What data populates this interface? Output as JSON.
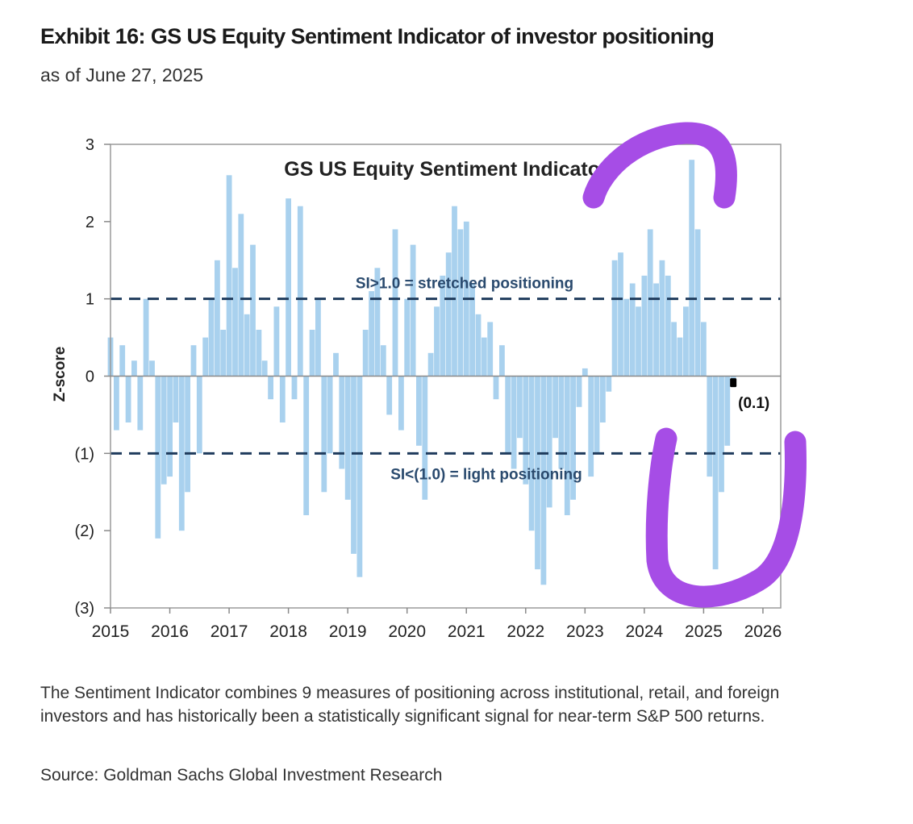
{
  "header": {
    "title": "Exhibit 16: GS US Equity Sentiment Indicator of investor positioning",
    "subtitle": "as of June 27, 2025"
  },
  "footer": {
    "note": "The Sentiment Indicator combines 9 measures of positioning across institutional, retail, and foreign investors and has historically been a statistically significant signal for near-term S&P 500 returns.",
    "source": "Source: Goldman Sachs Global Investment Research"
  },
  "chart_data": {
    "type": "bar",
    "title": "GS US Equity  Sentiment Indicator",
    "ylabel": "Z-score",
    "xlabel": "",
    "xlim": [
      2015,
      2026.3
    ],
    "ylim": [
      -3,
      3
    ],
    "y_ticks": [
      {
        "value": 3,
        "label": "3"
      },
      {
        "value": 2,
        "label": "2"
      },
      {
        "value": 1,
        "label": "1"
      },
      {
        "value": 0,
        "label": "0"
      },
      {
        "value": -1,
        "label": "(1)"
      },
      {
        "value": -2,
        "label": "(2)"
      },
      {
        "value": -3,
        "label": "(3)"
      }
    ],
    "x_ticks": [
      2015,
      2016,
      2017,
      2018,
      2019,
      2020,
      2021,
      2022,
      2023,
      2024,
      2025,
      2026
    ],
    "grid": false,
    "bar_color": "#a9d1ee",
    "threshold_color": "#1f3b5c",
    "thresholds": [
      {
        "value": 1,
        "label": "SI>1.0 = stretched positioning"
      },
      {
        "value": -1,
        "label": "SI<(1.0) = light positioning"
      }
    ],
    "latest": {
      "x": 2025.5,
      "value": -0.1,
      "label": "(0.1)"
    },
    "series": [
      {
        "x": [
          2015.0,
          2015.1,
          2015.2,
          2015.3,
          2015.4,
          2015.5,
          2015.6,
          2015.7,
          2015.8,
          2015.9,
          2016.0,
          2016.1,
          2016.2,
          2016.3,
          2016.4,
          2016.5,
          2016.6,
          2016.7,
          2016.8,
          2016.9,
          2017.0,
          2017.1,
          2017.2,
          2017.3,
          2017.4,
          2017.5,
          2017.6,
          2017.7,
          2017.8,
          2017.9,
          2018.0,
          2018.1,
          2018.2,
          2018.3,
          2018.4,
          2018.5,
          2018.6,
          2018.7,
          2018.8,
          2018.9,
          2019.0,
          2019.1,
          2019.2,
          2019.3,
          2019.4,
          2019.5,
          2019.6,
          2019.7,
          2019.8,
          2019.9,
          2020.0,
          2020.1,
          2020.2,
          2020.3,
          2020.4,
          2020.5,
          2020.6,
          2020.7,
          2020.8,
          2020.9,
          2021.0,
          2021.1,
          2021.2,
          2021.3,
          2021.4,
          2021.5,
          2021.6,
          2021.7,
          2021.8,
          2021.9,
          2022.0,
          2022.1,
          2022.2,
          2022.3,
          2022.4,
          2022.5,
          2022.6,
          2022.7,
          2022.8,
          2022.9,
          2023.0,
          2023.1,
          2023.2,
          2023.3,
          2023.4,
          2023.5,
          2023.6,
          2023.7,
          2023.8,
          2023.9,
          2024.0,
          2024.1,
          2024.2,
          2024.3,
          2024.4,
          2024.5,
          2024.6,
          2024.7,
          2024.8,
          2024.9,
          2025.0,
          2025.1,
          2025.2,
          2025.3,
          2025.4,
          2025.5
        ],
        "values": [
          0.5,
          -0.7,
          0.4,
          -0.6,
          0.2,
          -0.7,
          1.0,
          0.2,
          -2.1,
          -1.4,
          -1.3,
          -0.6,
          -2.0,
          -1.5,
          0.4,
          -1.0,
          0.5,
          1.0,
          1.5,
          0.6,
          2.6,
          1.4,
          2.1,
          0.8,
          1.7,
          0.6,
          0.2,
          -0.3,
          0.9,
          -0.6,
          2.3,
          -0.3,
          2.2,
          -1.8,
          0.6,
          1.0,
          -1.5,
          -1.0,
          0.3,
          -1.2,
          -1.6,
          -2.3,
          -2.6,
          0.6,
          1.1,
          1.4,
          0.4,
          -0.5,
          1.9,
          -0.7,
          1.0,
          1.7,
          -0.9,
          -1.6,
          0.3,
          0.9,
          1.3,
          1.6,
          2.2,
          1.9,
          2.0,
          1.2,
          0.8,
          0.5,
          0.7,
          -0.3,
          0.4,
          -1.0,
          -1.2,
          -0.8,
          -1.4,
          -2.0,
          -2.5,
          -2.7,
          -1.7,
          -0.8,
          -1.2,
          -1.8,
          -1.6,
          -0.4,
          0.1,
          -1.3,
          -1.0,
          -0.6,
          -0.2,
          1.5,
          1.6,
          1.0,
          1.2,
          0.9,
          1.3,
          1.9,
          1.2,
          1.5,
          1.3,
          0.7,
          0.5,
          0.9,
          2.8,
          1.9,
          0.7,
          -1.3,
          -2.5,
          -1.5,
          -0.9,
          -0.1
        ]
      }
    ]
  }
}
